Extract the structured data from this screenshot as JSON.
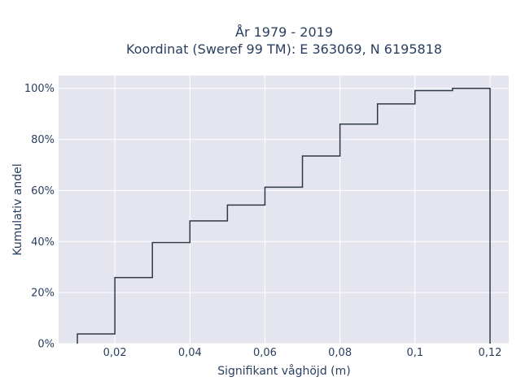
{
  "chart_data": {
    "type": "line",
    "subtype": "cumulative-step-histogram",
    "title_line1": "År 1979 - 2019",
    "title_line2": "Koordinat (Sweref 99 TM): E 363069, N 6195818",
    "xlabel": "Signifikant våghöjd (m)",
    "ylabel": "Kumulativ andel",
    "xlim": [
      0.005,
      0.125
    ],
    "ylim": [
      0,
      1.05
    ],
    "x_ticks": [
      0.02,
      0.04,
      0.06,
      0.08,
      0.1,
      0.12
    ],
    "x_tick_labels": [
      "0,02",
      "0,04",
      "0,06",
      "0,08",
      "0,1",
      "0,12"
    ],
    "y_ticks": [
      0,
      0.2,
      0.4,
      0.6,
      0.8,
      1.0
    ],
    "y_tick_labels": [
      "0%",
      "20%",
      "40%",
      "60%",
      "80%",
      "100%"
    ],
    "bin_edges": [
      0.01,
      0.02,
      0.03,
      0.04,
      0.05,
      0.06,
      0.07,
      0.08,
      0.09,
      0.1,
      0.11,
      0.12
    ],
    "cumulative_values": [
      0.038,
      0.259,
      0.396,
      0.481,
      0.543,
      0.613,
      0.735,
      0.86,
      0.939,
      0.991,
      1.0
    ],
    "grid": true,
    "colors": {
      "background": "#e5e5ef",
      "line": "#2f3a46",
      "grid": "#ffffff",
      "text": "#2a3f5f"
    }
  }
}
